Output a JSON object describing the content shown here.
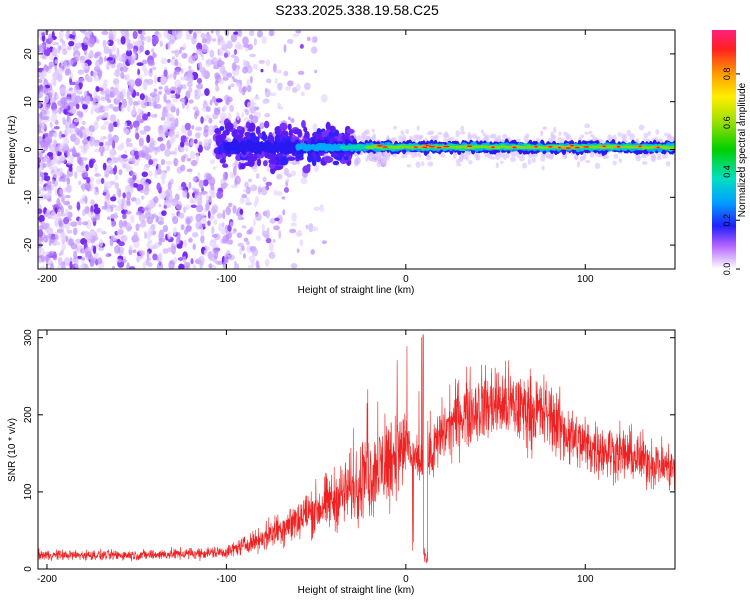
{
  "title": "S233.2025.338.19.58.C25",
  "colors": {
    "snr_line": "#ee2222",
    "axis": "#000000"
  },
  "chart_data": [
    {
      "type": "heatmap",
      "xlabel": "Height of straight line (km)",
      "ylabel": "Frequency (Hz)",
      "xlim": [
        -205,
        150
      ],
      "ylim": [
        -25,
        25
      ],
      "xticks": [
        -200,
        -100,
        0,
        100
      ],
      "yticks": [
        -20,
        -10,
        0,
        10,
        20
      ],
      "colorbar": {
        "label": "Normalized spectral amplitude",
        "range": [
          0,
          0.98
        ],
        "ticks": [
          0.0,
          0.2,
          0.4,
          0.6,
          0.8
        ]
      },
      "description_values": {
        "noise_region_x": [
          -205,
          -40
        ],
        "signal_band_x": [
          -40,
          150
        ],
        "signal_center_freq": 0.5
      }
    },
    {
      "type": "line",
      "xlabel": "Height of straight line (km)",
      "ylabel": "SNR (10 * v/v)",
      "xlim": [
        -205,
        150
      ],
      "ylim": [
        0,
        310
      ],
      "xticks": [
        -200,
        -100,
        0,
        100
      ],
      "yticks": [
        0,
        100,
        200,
        300
      ],
      "envelope_x": [
        -205,
        -150,
        -120,
        -100,
        -80,
        -60,
        -40,
        -20,
        -10,
        0,
        10,
        20,
        30,
        40,
        50,
        60,
        70,
        80,
        90,
        100,
        120,
        150
      ],
      "envelope_y": [
        18,
        18,
        20,
        22,
        40,
        65,
        90,
        120,
        140,
        160,
        130,
        175,
        200,
        210,
        215,
        210,
        205,
        200,
        175,
        160,
        150,
        130
      ]
    }
  ]
}
